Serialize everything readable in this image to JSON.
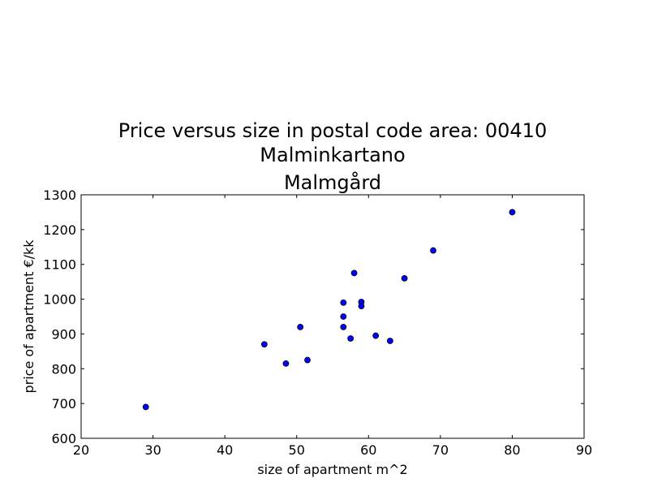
{
  "chart_data": {
    "type": "scatter",
    "title_lines": [
      "Price versus size in postal code area: 00410",
      "Malminkartano",
      "Malmgård"
    ],
    "xlabel": "size of apartment m^2",
    "ylabel": "price of apartment €/kk",
    "xlim": [
      20,
      90
    ],
    "ylim": [
      600,
      1300
    ],
    "x_ticks": [
      20,
      30,
      40,
      50,
      60,
      70,
      80,
      90
    ],
    "y_ticks": [
      600,
      700,
      800,
      900,
      1000,
      1100,
      1200,
      1300
    ],
    "grid": false,
    "marker_color": "#0000ff",
    "points": [
      {
        "x": 29,
        "y": 690
      },
      {
        "x": 45.5,
        "y": 870
      },
      {
        "x": 48.5,
        "y": 815
      },
      {
        "x": 50.5,
        "y": 920
      },
      {
        "x": 51.5,
        "y": 825
      },
      {
        "x": 56.5,
        "y": 990
      },
      {
        "x": 56.5,
        "y": 950
      },
      {
        "x": 56.5,
        "y": 920
      },
      {
        "x": 57.5,
        "y": 887
      },
      {
        "x": 58,
        "y": 1075
      },
      {
        "x": 59,
        "y": 992
      },
      {
        "x": 59,
        "y": 980
      },
      {
        "x": 61,
        "y": 895
      },
      {
        "x": 63,
        "y": 880
      },
      {
        "x": 65,
        "y": 1060
      },
      {
        "x": 69,
        "y": 1140
      },
      {
        "x": 80,
        "y": 1250
      }
    ]
  }
}
